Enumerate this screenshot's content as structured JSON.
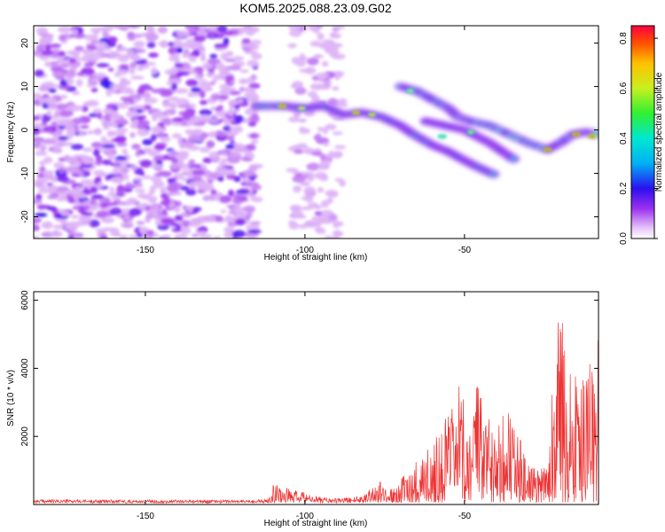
{
  "title": "KOM5.2025.088.23.09.G02",
  "colorbar": {
    "label": "Normalized spectral amplitude",
    "ticks": [
      "0.0",
      "0.2",
      "0.4",
      "0.6",
      "0.8"
    ],
    "tick_values": [
      0.0,
      0.2,
      0.4,
      0.6,
      0.8
    ],
    "range": [
      0.0,
      0.85
    ]
  },
  "chart_data": [
    {
      "type": "heatmap",
      "xlabel": "Height of straight line (km)",
      "ylabel": "Frequency (Hz)",
      "xlim": [
        -185,
        -8
      ],
      "ylim": [
        -25,
        24
      ],
      "xticks": [
        -150,
        -100,
        -50
      ],
      "xtick_labels": [
        "-150",
        "-100",
        "-50"
      ],
      "yticks": [
        -20,
        -10,
        0,
        10,
        20
      ],
      "ytick_labels": [
        "-20",
        "-10",
        "0",
        "10",
        "20"
      ],
      "noise_regions": [
        {
          "x": [
            -185,
            -115
          ],
          "y": [
            -25,
            24
          ],
          "level": 0.15
        },
        {
          "x": [
            -104,
            -88
          ],
          "y": [
            -25,
            24
          ],
          "level": 0.08
        }
      ],
      "ridges": [
        {
          "points": [
            [
              -115,
              5.5
            ],
            [
              -106,
              5.5
            ],
            [
              -100,
              5
            ],
            [
              -94,
              5.5
            ],
            [
              -88,
              3.5
            ],
            [
              -82,
              4
            ],
            [
              -76,
              3
            ],
            [
              -70,
              1
            ],
            [
              -66,
              -1
            ],
            [
              -60,
              -3.5
            ],
            [
              -55,
              -5
            ],
            [
              -50,
              -7
            ],
            [
              -46,
              -8.5
            ],
            [
              -40,
              -10.5
            ]
          ],
          "peak": 0.6
        },
        {
          "points": [
            [
              -70,
              10
            ],
            [
              -65,
              9
            ],
            [
              -60,
              7
            ],
            [
              -55,
              5
            ],
            [
              -52,
              3
            ],
            [
              -48,
              2
            ],
            [
              -42,
              1
            ],
            [
              -36,
              -1
            ],
            [
              -30,
              -3
            ],
            [
              -24,
              -4.5
            ],
            [
              -20,
              -3
            ],
            [
              -16,
              -1
            ],
            [
              -12,
              -0.5
            ],
            [
              -8,
              -1
            ]
          ],
          "peak": 0.8
        },
        {
          "points": [
            [
              -62,
              2
            ],
            [
              -56,
              1
            ],
            [
              -50,
              0
            ],
            [
              -46,
              -1.5
            ],
            [
              -42,
              -3
            ],
            [
              -38,
              -5
            ],
            [
              -34,
              -7
            ]
          ],
          "peak": 0.55
        }
      ],
      "hotspots": [
        {
          "x": -107,
          "y": 5.5,
          "v": 0.8
        },
        {
          "x": -101,
          "y": 5,
          "v": 0.7
        },
        {
          "x": -84,
          "y": 4,
          "v": 0.78
        },
        {
          "x": -79,
          "y": 3.5,
          "v": 0.72
        },
        {
          "x": -67,
          "y": 9,
          "v": 0.6
        },
        {
          "x": -24,
          "y": -4.5,
          "v": 0.85
        },
        {
          "x": -15,
          "y": -1,
          "v": 0.85
        },
        {
          "x": -10,
          "y": -1.5,
          "v": 0.85
        },
        {
          "x": -48,
          "y": -0.5,
          "v": 0.6
        },
        {
          "x": -57,
          "y": -1.5,
          "v": 0.55
        }
      ]
    },
    {
      "type": "line",
      "xlabel": "Height of straight line (km)",
      "ylabel": "SNR (10 * v/v)",
      "xlim": [
        -185,
        -8
      ],
      "ylim": [
        0,
        6250
      ],
      "xticks": [
        -150,
        -100,
        -50
      ],
      "xtick_labels": [
        "-150",
        "-100",
        "-50"
      ],
      "yticks": [
        2000,
        4000,
        6000
      ],
      "ytick_labels": [
        "2000",
        "4000",
        "6000"
      ],
      "series": [
        {
          "color": "#ee3333",
          "envelope": [
            [
              -185,
              120
            ],
            [
              -150,
              110
            ],
            [
              -120,
              110
            ],
            [
              -112,
              120
            ],
            [
              -110,
              600
            ],
            [
              -104,
              400
            ],
            [
              -98,
              250
            ],
            [
              -90,
              150
            ],
            [
              -82,
              250
            ],
            [
              -78,
              700
            ],
            [
              -72,
              400
            ],
            [
              -67,
              1100
            ],
            [
              -62,
              1600
            ],
            [
              -55,
              2700
            ],
            [
              -52,
              3500
            ],
            [
              -50,
              3000
            ],
            [
              -46,
              3800
            ],
            [
              -44,
              2700
            ],
            [
              -38,
              3400
            ],
            [
              -32,
              1700
            ],
            [
              -29,
              1000
            ],
            [
              -25,
              1400
            ],
            [
              -22,
              4300
            ],
            [
              -19.5,
              6200
            ],
            [
              -18,
              3400
            ],
            [
              -16,
              5300
            ],
            [
              -14,
              3200
            ],
            [
              -12,
              4100
            ],
            [
              -10,
              4600
            ],
            [
              -8,
              4900
            ]
          ]
        }
      ]
    }
  ]
}
